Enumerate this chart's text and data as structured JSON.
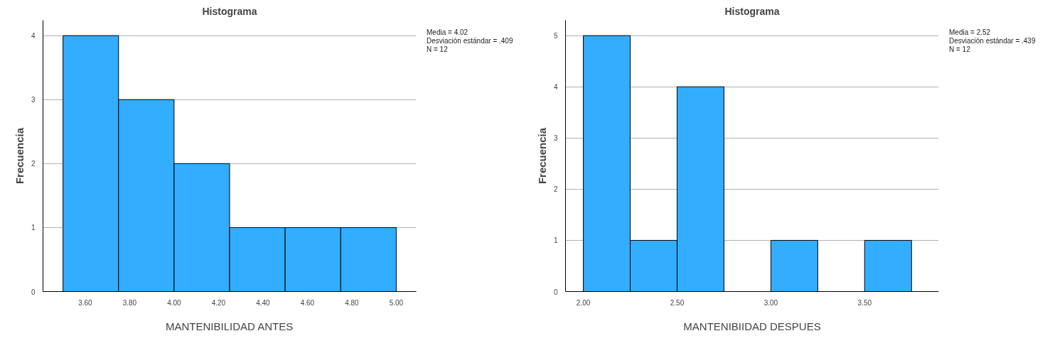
{
  "chart_data": [
    {
      "type": "histogram",
      "title": "Histograma",
      "xlabel": "MANTENIBILIDAD ANTES",
      "ylabel": "Frecuencia",
      "bins": [
        3.5,
        3.75,
        4.0,
        4.25,
        4.5,
        4.75,
        5.0
      ],
      "values": [
        4,
        3,
        2,
        1,
        1,
        1
      ],
      "color": "#33adff",
      "xlim": [
        3.41,
        5.09
      ],
      "xticks": [
        {
          "value": 3.6,
          "label": "3.60"
        },
        {
          "value": 3.8,
          "label": "3.80"
        },
        {
          "value": 4.0,
          "label": "4.00"
        },
        {
          "value": 4.2,
          "label": "4.20"
        },
        {
          "value": 4.4,
          "label": "4.40"
        },
        {
          "value": 4.6,
          "label": "4.60"
        },
        {
          "value": 4.8,
          "label": "4.80"
        },
        {
          "value": 5.0,
          "label": "5.00"
        }
      ],
      "ylim": [
        0,
        4.24
      ],
      "yticks": [
        0,
        1,
        2,
        3,
        4
      ],
      "grid": "y",
      "annotations": [
        "Media = 4.02",
        "Desviación estándar = .409",
        "N = 12"
      ]
    },
    {
      "type": "histogram",
      "title": "Histograma",
      "xlabel": "MANTENIBIIDAD DESPUES",
      "ylabel": "Frecuencia",
      "bins": [
        2.0,
        2.25,
        2.5,
        2.75,
        3.0,
        3.25,
        3.5,
        3.75
      ],
      "values": [
        5,
        1,
        4,
        0,
        1,
        0,
        1
      ],
      "color": "#33adff",
      "xlim": [
        1.905,
        3.895
      ],
      "xticks": [
        {
          "value": 2.0,
          "label": "2.00"
        },
        {
          "value": 2.5,
          "label": "2.50"
        },
        {
          "value": 3.0,
          "label": "3.00"
        },
        {
          "value": 3.5,
          "label": "3.50"
        }
      ],
      "ylim": [
        0,
        5.3
      ],
      "yticks": [
        0,
        1,
        2,
        3,
        4,
        5
      ],
      "grid": "y",
      "annotations": [
        "Media = 2.52",
        "Desviación estándar = .439",
        "N = 12"
      ]
    }
  ]
}
